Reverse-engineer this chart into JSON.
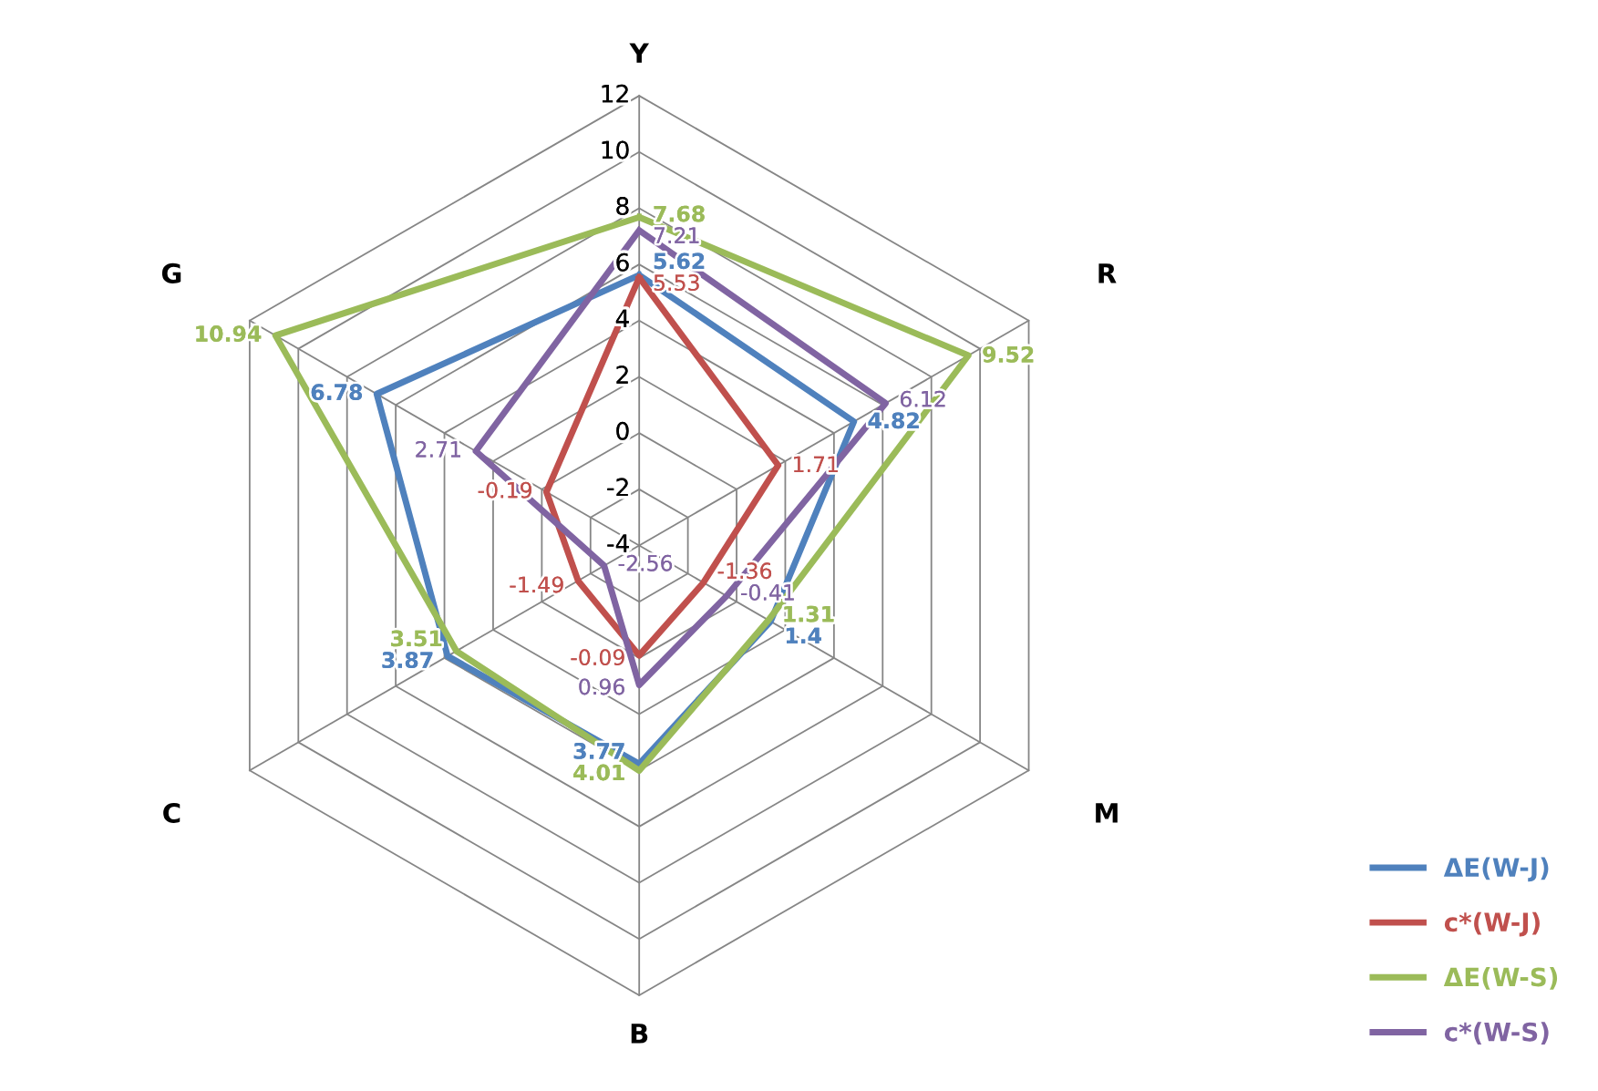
{
  "chart_data": {
    "type": "radar",
    "categories": [
      "Y",
      "R",
      "M",
      "B",
      "C",
      "G"
    ],
    "ylim": [
      -4,
      12
    ],
    "yticks": [
      -4,
      -2,
      0,
      2,
      4,
      6,
      8,
      10,
      12
    ],
    "data_labels": true,
    "legend": "bottom right",
    "grid": true,
    "series": [
      {
        "name": "ΔE(W-J)",
        "color": "#4f81bd",
        "values": [
          5.62,
          4.82,
          1.4,
          3.77,
          3.87,
          6.78
        ]
      },
      {
        "name": "c*(W-J)",
        "color": "#c0504d",
        "values": [
          5.53,
          1.71,
          -1.36,
          -0.09,
          -1.49,
          -0.19
        ]
      },
      {
        "name": "ΔE(W-S)",
        "color": "#9bbb59",
        "values": [
          7.68,
          9.52,
          1.31,
          4.01,
          3.51,
          10.94
        ]
      },
      {
        "name": "c*(W-S)",
        "color": "#8064a2",
        "values": [
          7.21,
          6.12,
          -0.41,
          0.96,
          -2.56,
          2.71
        ]
      }
    ]
  }
}
